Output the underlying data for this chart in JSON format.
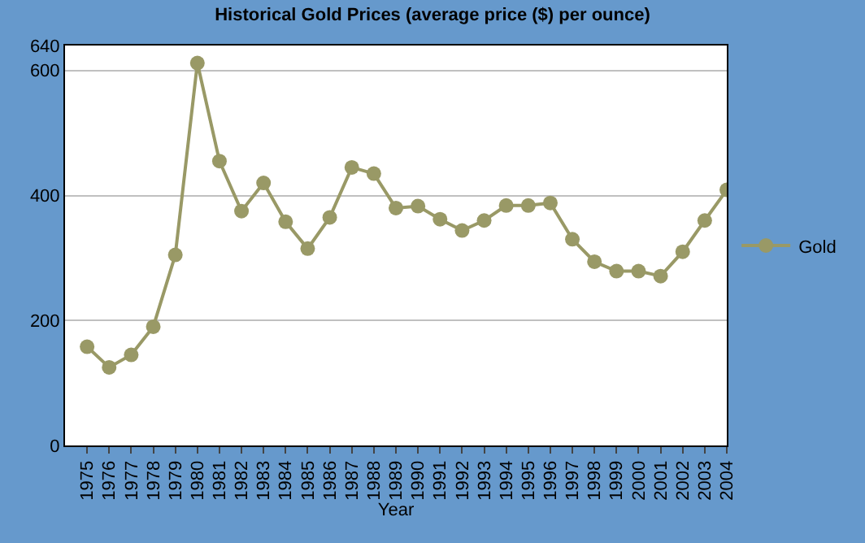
{
  "chart_data": {
    "type": "line",
    "title": "Historical Gold Prices (average price ($) per ounce)",
    "xlabel": "Year",
    "x": [
      1975,
      1976,
      1977,
      1978,
      1979,
      1980,
      1981,
      1982,
      1983,
      1984,
      1985,
      1986,
      1987,
      1988,
      1989,
      1990,
      1991,
      1992,
      1993,
      1994,
      1995,
      1996,
      1997,
      1998,
      1999,
      2000,
      2001,
      2002,
      2003,
      2004
    ],
    "series": [
      {
        "name": "Gold",
        "color": "#999966",
        "values": [
          158,
          125,
          145,
          190,
          305,
          612,
          455,
          375,
          420,
          358,
          315,
          365,
          445,
          435,
          380,
          383,
          362,
          344,
          360,
          384,
          384,
          388,
          330,
          294,
          279,
          279,
          271,
          310,
          360,
          409
        ]
      }
    ],
    "xlim": [
      1974,
      2004
    ],
    "xticks": [
      1975,
      1976,
      1977,
      1978,
      1979,
      1980,
      1981,
      1982,
      1983,
      1984,
      1985,
      1986,
      1987,
      1988,
      1989,
      1990,
      1991,
      1992,
      1993,
      1994,
      1995,
      1996,
      1997,
      1998,
      1999,
      2000,
      2001,
      2002,
      2003,
      2004
    ],
    "ylim": [
      0,
      640
    ],
    "yticks": [
      0,
      200,
      400,
      600,
      640
    ],
    "grid": "y",
    "legend": "right",
    "marker": "circle",
    "line_style": "solid"
  }
}
